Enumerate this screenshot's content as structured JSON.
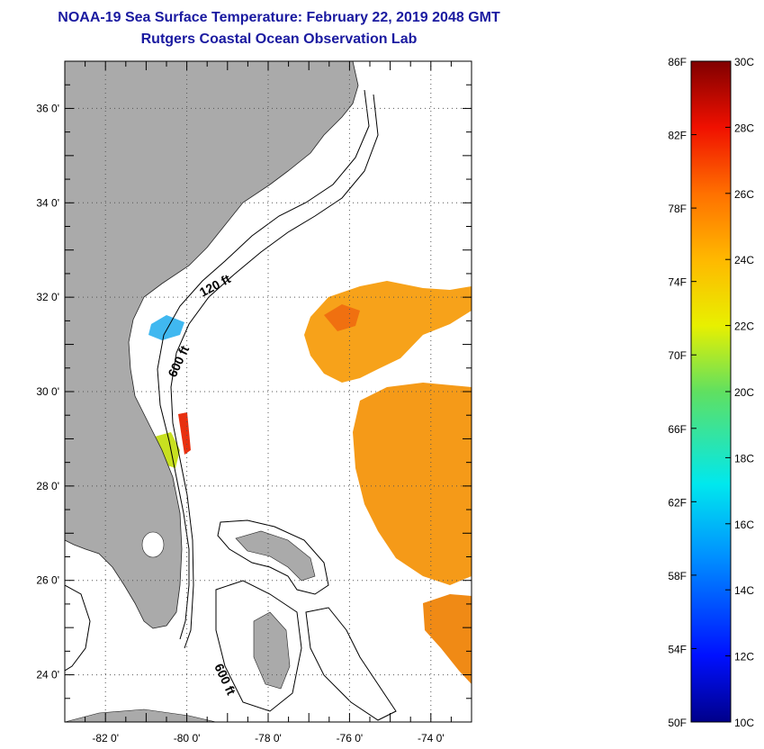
{
  "title": "NOAA-19 Sea Surface Temperature:  February 22, 2019 2048 GMT",
  "subtitle": "Rutgers Coastal Ocean Observation Lab",
  "map": {
    "lat_labels": [
      "36 0'",
      "34 0'",
      "32 0'",
      "30 0'",
      "28 0'",
      "26 0'",
      "24 0'"
    ],
    "lat_values": [
      36,
      34,
      32,
      30,
      28,
      26,
      24
    ],
    "lon_labels": [
      "-82 0'",
      "-80 0'",
      "-78 0'",
      "-76 0'",
      "-74 0'"
    ],
    "lon_values": [
      -82,
      -80,
      -78,
      -76,
      -74
    ],
    "lat_range": [
      23,
      37
    ],
    "lon_range": [
      -83,
      -73
    ],
    "contour_labels": [
      "120 ft",
      "600 ft",
      "600 ft"
    ],
    "land_color": "#aaaaaa"
  },
  "colorbar": {
    "fahrenheit": [
      "86F",
      "82F",
      "78F",
      "74F",
      "70F",
      "66F",
      "62F",
      "58F",
      "54F",
      "50F"
    ],
    "celsius": [
      "30C",
      "28C",
      "26C",
      "24C",
      "22C",
      "20C",
      "18C",
      "16C",
      "14C",
      "12C",
      "10C"
    ]
  }
}
